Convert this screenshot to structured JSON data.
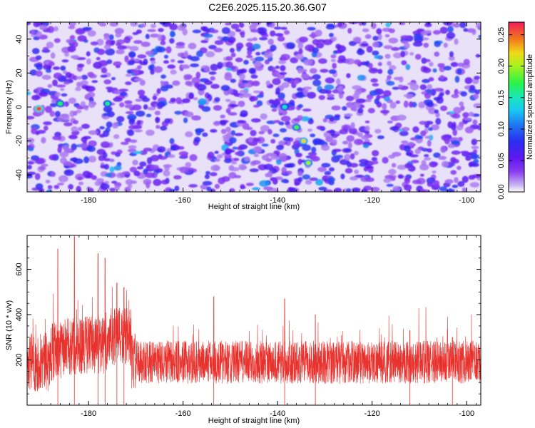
{
  "title": "C2E6.2025.115.20.36.G07",
  "chart_data": [
    {
      "type": "heatmap",
      "xlabel": "Height of straight line (km)",
      "ylabel": "Frequency (Hz)",
      "xlim": [
        -193,
        -97
      ],
      "ylim": [
        -50,
        50
      ],
      "xticks": [
        -180,
        -160,
        -140,
        -120,
        -100
      ],
      "yticks": [
        -40,
        -20,
        0,
        20,
        40
      ],
      "colorbar": {
        "label": "Normalized spectral amplitude",
        "range": [
          0,
          0.27
        ],
        "ticks": [
          0.0,
          0.05,
          0.1,
          0.15,
          0.2,
          0.25
        ],
        "tick_labels": [
          "0.00",
          "0.05",
          "0.10",
          "0.15",
          "0.20",
          "0.25"
        ]
      },
      "features": [
        {
          "x": -190.5,
          "y": -1,
          "value": 0.26
        },
        {
          "x": -186,
          "y": 2,
          "value": 0.17
        },
        {
          "x": -176,
          "y": 2,
          "value": 0.16
        },
        {
          "x": -138.5,
          "y": 0,
          "value": 0.15
        },
        {
          "x": -136,
          "y": -12,
          "value": 0.18
        },
        {
          "x": -134.5,
          "y": -20,
          "value": 0.22
        },
        {
          "x": -133.5,
          "y": -33,
          "value": 0.2
        }
      ],
      "background_level": 0.04
    },
    {
      "type": "line",
      "xlabel": "Height of straight line (km)",
      "ylabel": "SNR (10 * v/v)",
      "xlim": [
        -193,
        -97
      ],
      "ylim": [
        0,
        750
      ],
      "xticks": [
        -180,
        -160,
        -140,
        -120,
        -100
      ],
      "yticks": [
        200,
        400,
        600
      ],
      "series": [
        {
          "color": "#e8322e",
          "peaks": [
            {
              "x": -186.5,
              "y": 690
            },
            {
              "x": -183,
              "y": 750
            },
            {
              "x": -178,
              "y": 670
            },
            {
              "x": -176.5,
              "y": 650
            },
            {
              "x": -174,
              "y": 540
            },
            {
              "x": -172.5,
              "y": 520
            },
            {
              "x": -153.5,
              "y": 480
            },
            {
              "x": -138.5,
              "y": 470
            },
            {
              "x": -132,
              "y": 400
            },
            {
              "x": -112,
              "y": 330
            },
            {
              "x": -103,
              "y": 300
            }
          ]
        }
      ]
    }
  ]
}
